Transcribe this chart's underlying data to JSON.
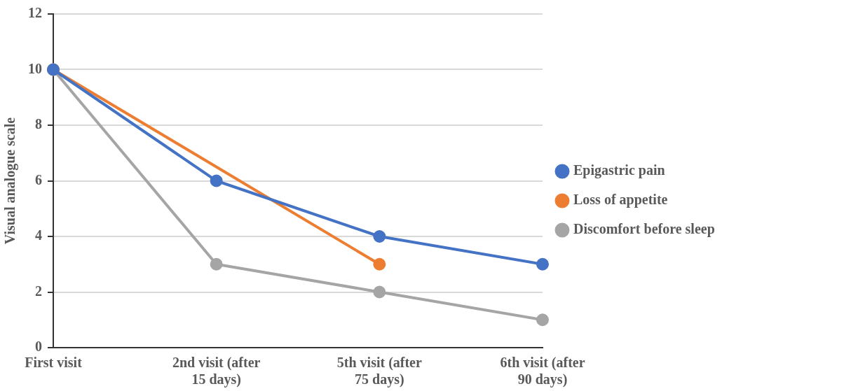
{
  "chart_data": {
    "type": "line",
    "ylabel": "Visual analogue scale",
    "categories": [
      "First visit",
      "2nd visit (after 15 days)",
      "5th visit (after 75 days)",
      "6th visit (after 90 days)"
    ],
    "series": [
      {
        "name": "Epigastric pain",
        "color": "#4472c4",
        "values": [
          10,
          6,
          4,
          3
        ]
      },
      {
        "name": "Loss of appetite",
        "color": "#ed7d31",
        "values": [
          10,
          null,
          3,
          null
        ]
      },
      {
        "name": "Discomfort before sleep",
        "color": "#a5a5a5",
        "values": [
          10,
          3,
          2,
          1
        ]
      }
    ],
    "ylim": [
      0,
      12
    ],
    "yticks": [
      0,
      2,
      4,
      6,
      8,
      10,
      12
    ],
    "grid": "y",
    "legend": "right",
    "marker": "circle",
    "line_style": "solid"
  }
}
